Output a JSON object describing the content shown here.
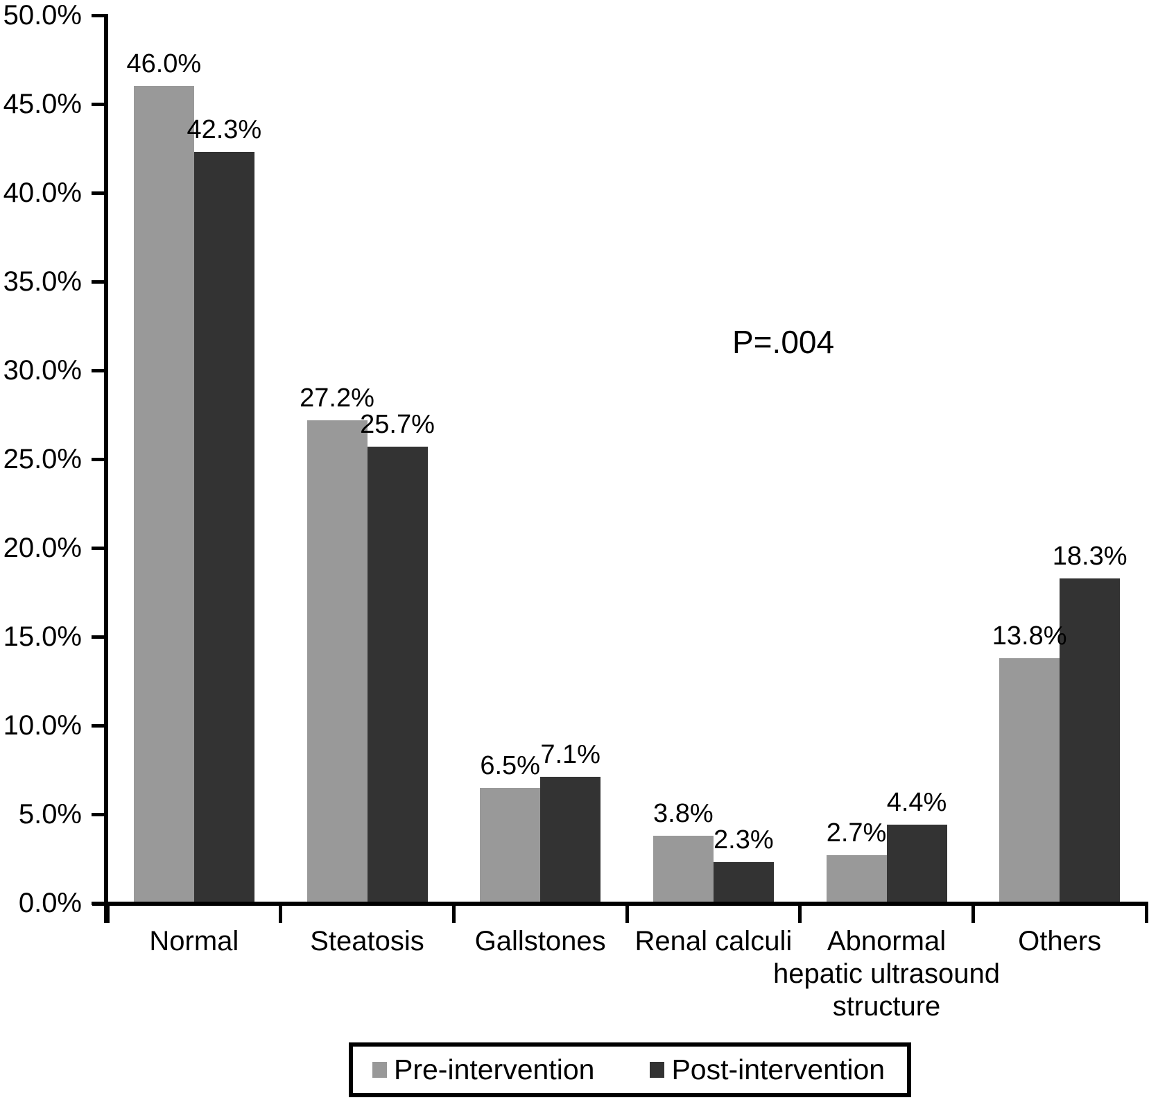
{
  "figure": {
    "background": "#ffffff",
    "text_color": "#000000"
  },
  "chart_data": {
    "type": "bar",
    "title": "",
    "xlabel": "",
    "ylabel": "",
    "grid": false,
    "annotation": "P=.004",
    "categories": [
      "Normal",
      "Steatosis",
      "Gallstones",
      "Renal calculi",
      "Abnormal\nhepatic ultrasound\nstructure",
      "Others"
    ],
    "series": [
      {
        "name": "Pre-intervention",
        "color": "#999999",
        "values": [
          46.0,
          27.2,
          6.5,
          3.8,
          2.7,
          13.8
        ],
        "value_labels": [
          "46.0%",
          "27.2%",
          "6.5%",
          "3.8%",
          "2.7%",
          "13.8%"
        ]
      },
      {
        "name": "Post-intervention",
        "color": "#333333",
        "values": [
          42.3,
          25.7,
          7.1,
          2.3,
          4.4,
          18.3
        ],
        "value_labels": [
          "42.3%",
          "25.7%",
          "7.1%",
          "2.3%",
          "4.4%",
          "18.3%"
        ]
      }
    ],
    "y_axis": {
      "min": 0,
      "max": 50,
      "step": 5,
      "tick_labels": [
        "0.0%",
        "5.0%",
        "10.0%",
        "15.0%",
        "20.0%",
        "25.0%",
        "30.0%",
        "35.0%",
        "40.0%",
        "45.0%",
        "50.0%"
      ]
    },
    "legend": {
      "position": "bottom",
      "entries": [
        "Pre-intervention",
        "Post-intervention"
      ]
    }
  }
}
